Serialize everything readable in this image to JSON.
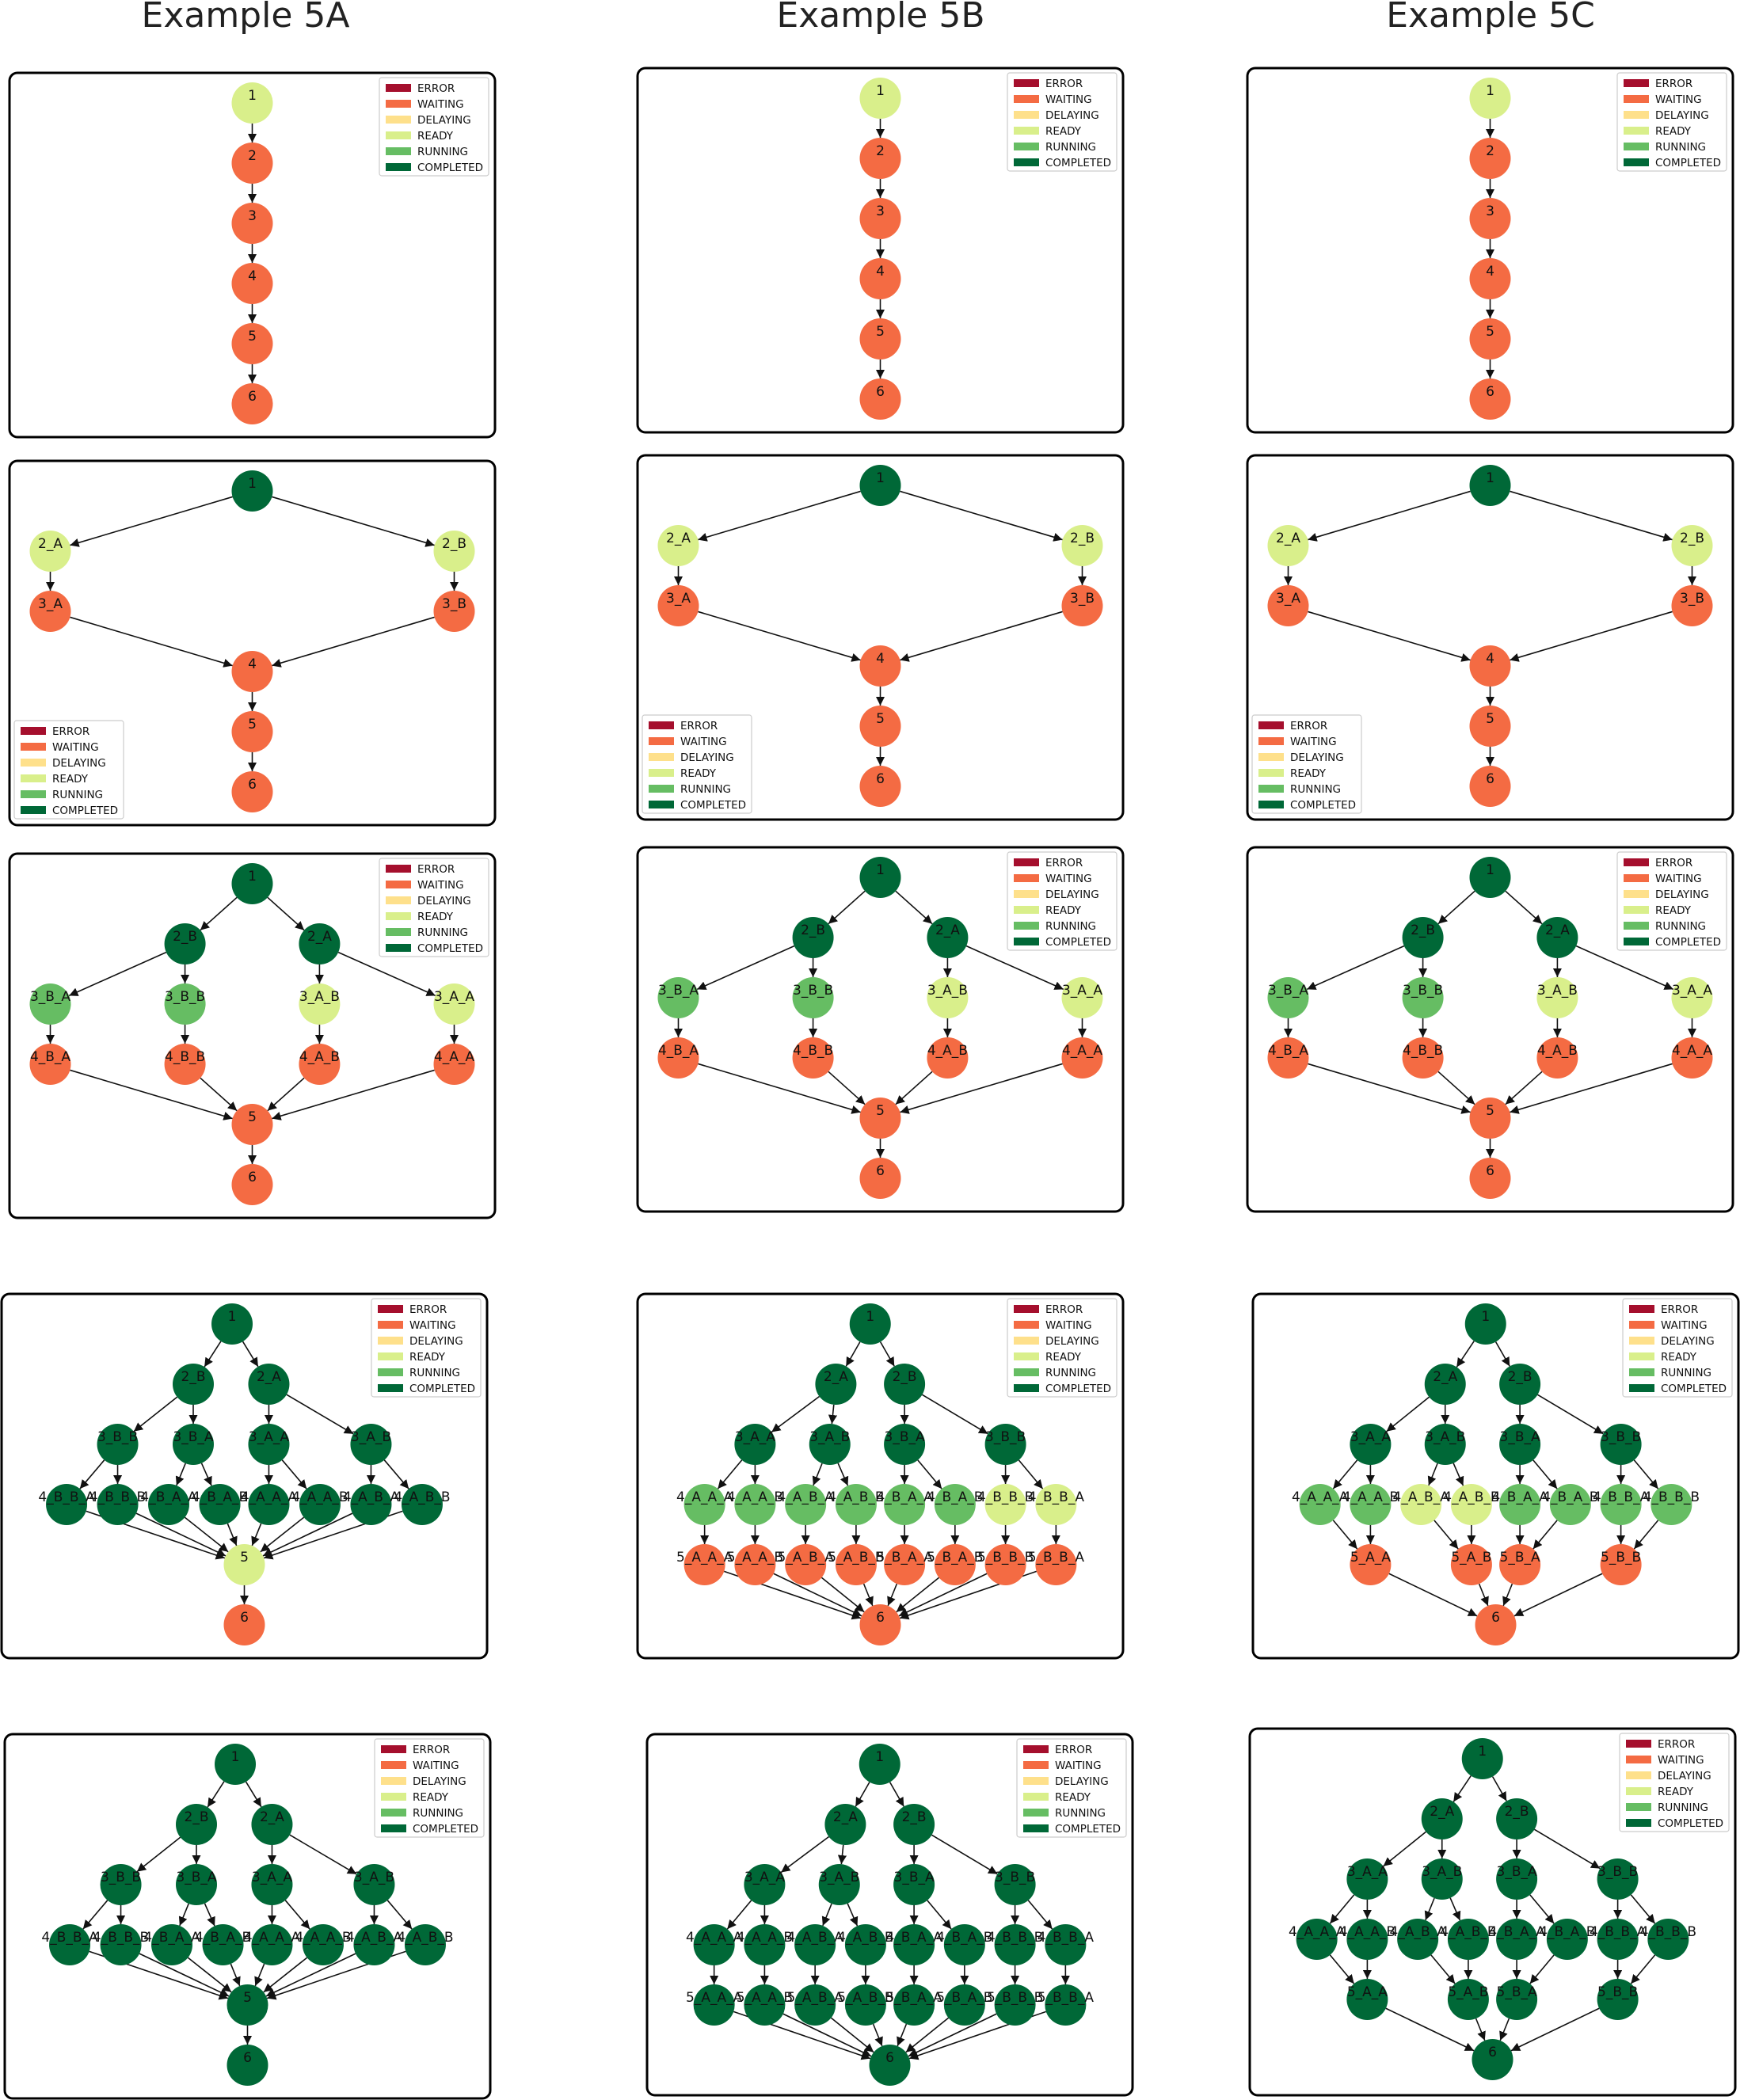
{
  "columns": [
    "Example 5A",
    "Example 5B",
    "Example 5C"
  ],
  "legend": [
    {
      "label": "ERROR",
      "color": "#a50f2d"
    },
    {
      "label": "WAITING",
      "color": "#f46b43"
    },
    {
      "label": "DELAYING",
      "color": "#fee08b"
    },
    {
      "label": "READY",
      "color": "#d9ef8b"
    },
    {
      "label": "RUNNING",
      "color": "#66bd63"
    },
    {
      "label": "COMPLETED",
      "color": "#006837"
    }
  ],
  "status_colors": {
    "W": "#f46b43",
    "R": "#d9ef8b",
    "U": "#66bd63",
    "C": "#006837"
  },
  "panels": [
    {
      "graph": "chain",
      "legend_pos": "top-right",
      "states": {
        "1": "R"
      }
    },
    {
      "graph": "chain",
      "legend_pos": "top-right",
      "states": {
        "1": "R"
      }
    },
    {
      "graph": "chain",
      "legend_pos": "top-right",
      "states": {
        "1": "R"
      }
    },
    {
      "graph": "g2",
      "legend_pos": "bottom-left",
      "states": {
        "1": "C",
        "2_A": "R",
        "2_B": "R"
      }
    },
    {
      "graph": "g2",
      "legend_pos": "bottom-left",
      "states": {
        "1": "C",
        "2_A": "R",
        "2_B": "R"
      }
    },
    {
      "graph": "g2",
      "legend_pos": "bottom-left",
      "states": {
        "1": "C",
        "2_A": "R",
        "2_B": "R"
      }
    },
    {
      "graph": "g3",
      "legend_pos": "top-right",
      "states": {
        "1": "C",
        "2_B": "C",
        "2_A": "C",
        "3_B_A": "U",
        "3_B_B": "U",
        "3_A_B": "R",
        "3_A_A": "R"
      }
    },
    {
      "graph": "g3",
      "legend_pos": "top-right",
      "states": {
        "1": "C",
        "2_B": "C",
        "2_A": "C",
        "3_B_A": "U",
        "3_B_B": "U",
        "3_A_B": "R",
        "3_A_A": "R"
      }
    },
    {
      "graph": "g3",
      "legend_pos": "top-right",
      "states": {
        "1": "C",
        "2_B": "C",
        "2_A": "C",
        "3_B_A": "U",
        "3_B_B": "U",
        "3_A_B": "R",
        "3_A_A": "R"
      }
    },
    {
      "graph": "a",
      "legend_pos": "top-right",
      "states": {
        "1": "C",
        "2_B": "C",
        "2_A": "C",
        "3_B_B": "C",
        "3_B_A": "C",
        "3_A_A": "C",
        "3_A_B": "C",
        "4_B_B_A": "C",
        "4_B_B_B": "C",
        "4_B_A_A": "C",
        "4_B_A_B": "C",
        "4_A_A_A": "C",
        "4_A_A_B": "C",
        "4_A_B_A": "C",
        "4_A_B_B": "C",
        "5": "R"
      }
    },
    {
      "graph": "b",
      "legend_pos": "top-right",
      "states": {
        "1": "C",
        "2_A": "C",
        "2_B": "C",
        "3_A_A": "C",
        "3_A_B": "C",
        "3_B_A": "C",
        "3_B_B": "C",
        "4_A_A_A": "U",
        "4_A_A_B": "U",
        "4_A_B_A": "U",
        "4_A_B_B": "U",
        "4_B_A_A": "U",
        "4_B_A_B": "U",
        "4_B_B_B": "R",
        "4_B_B_A": "R"
      }
    },
    {
      "graph": "c",
      "legend_pos": "top-right",
      "states": {
        "1": "C",
        "2_A": "C",
        "2_B": "C",
        "3_A_A": "C",
        "3_A_B": "C",
        "3_B_A": "C",
        "3_B_B": "C",
        "4_A_A_A": "U",
        "4_A_A_B": "U",
        "4_A_B_A": "R",
        "4_A_B_B": "R",
        "4_B_A_A": "U",
        "4_B_A_B": "U",
        "4_B_B_A": "U",
        "4_B_B_B": "U"
      }
    },
    {
      "graph": "a",
      "legend_pos": "top-right",
      "states": {
        "*": "C"
      }
    },
    {
      "graph": "b",
      "legend_pos": "top-right",
      "states": {
        "*": "C"
      }
    },
    {
      "graph": "c",
      "legend_pos": "top-right",
      "states": {
        "*": "C"
      }
    }
  ],
  "graphs": {
    "chain": {
      "nodes": [
        [
          "1",
          0,
          0
        ],
        [
          "2",
          0,
          1
        ],
        [
          "3",
          0,
          2
        ],
        [
          "4",
          0,
          3
        ],
        [
          "5",
          0,
          4
        ],
        [
          "6",
          0,
          5
        ]
      ],
      "edges": [
        [
          "1",
          "2"
        ],
        [
          "2",
          "3"
        ],
        [
          "3",
          "4"
        ],
        [
          "4",
          "5"
        ],
        [
          "5",
          "6"
        ]
      ]
    },
    "g2": {
      "nodes": [
        [
          "1",
          0,
          0
        ],
        [
          "2_A",
          -1,
          1
        ],
        [
          "2_B",
          1,
          1
        ],
        [
          "3_A",
          -1,
          2
        ],
        [
          "3_B",
          1,
          2
        ],
        [
          "4",
          0,
          3
        ],
        [
          "5",
          0,
          4
        ],
        [
          "6",
          0,
          5
        ]
      ],
      "edges": [
        [
          "1",
          "2_A"
        ],
        [
          "1",
          "2_B"
        ],
        [
          "2_A",
          "3_A"
        ],
        [
          "2_B",
          "3_B"
        ],
        [
          "3_A",
          "4"
        ],
        [
          "3_B",
          "4"
        ],
        [
          "4",
          "5"
        ],
        [
          "5",
          "6"
        ]
      ]
    },
    "g3": {
      "nodes": [
        [
          "1",
          0,
          0
        ],
        [
          "2_B",
          -0.333,
          1
        ],
        [
          "2_A",
          0.333,
          1
        ],
        [
          "3_B_A",
          -1,
          2
        ],
        [
          "3_B_B",
          -0.333,
          2
        ],
        [
          "3_A_B",
          0.333,
          2
        ],
        [
          "3_A_A",
          1,
          2
        ],
        [
          "4_B_A",
          -1,
          3
        ],
        [
          "4_B_B",
          -0.333,
          3
        ],
        [
          "4_A_B",
          0.333,
          3
        ],
        [
          "4_A_A",
          1,
          3
        ],
        [
          "5",
          0,
          4
        ],
        [
          "6",
          0,
          5
        ]
      ],
      "edges": [
        [
          "1",
          "2_B"
        ],
        [
          "1",
          "2_A"
        ],
        [
          "2_B",
          "3_B_A"
        ],
        [
          "2_B",
          "3_B_B"
        ],
        [
          "2_A",
          "3_A_B"
        ],
        [
          "2_A",
          "3_A_A"
        ],
        [
          "3_B_A",
          "4_B_A"
        ],
        [
          "3_B_B",
          "4_B_B"
        ],
        [
          "3_A_B",
          "4_A_B"
        ],
        [
          "3_A_A",
          "4_A_A"
        ],
        [
          "4_B_A",
          "5"
        ],
        [
          "4_B_B",
          "5"
        ],
        [
          "4_A_B",
          "5"
        ],
        [
          "4_A_A",
          "5"
        ],
        [
          "5",
          "6"
        ]
      ]
    },
    "a": {
      "nodes": [
        [
          "1",
          -0.06,
          0
        ],
        [
          "2_B",
          -0.25,
          1
        ],
        [
          "2_A",
          0.12,
          1
        ],
        [
          "3_B_B",
          -0.62,
          2
        ],
        [
          "3_B_A",
          -0.25,
          2
        ],
        [
          "3_A_A",
          0.12,
          2
        ],
        [
          "3_A_B",
          0.62,
          2
        ],
        [
          "4_B_B_A",
          -0.87,
          3
        ],
        [
          "4_B_B_B",
          -0.62,
          3
        ],
        [
          "4_B_A_A",
          -0.37,
          3
        ],
        [
          "4_B_A_B",
          -0.12,
          3
        ],
        [
          "4_A_A_A",
          0.12,
          3
        ],
        [
          "4_A_A_B",
          0.37,
          3
        ],
        [
          "4_A_B_A",
          0.62,
          3
        ],
        [
          "4_A_B_B",
          0.87,
          3
        ],
        [
          "5",
          0,
          4
        ],
        [
          "6",
          0,
          5
        ]
      ],
      "edges": [
        [
          "1",
          "2_B"
        ],
        [
          "1",
          "2_A"
        ],
        [
          "2_B",
          "3_B_B"
        ],
        [
          "2_B",
          "3_B_A"
        ],
        [
          "2_A",
          "3_A_A"
        ],
        [
          "2_A",
          "3_A_B"
        ],
        [
          "3_B_B",
          "4_B_B_A"
        ],
        [
          "3_B_B",
          "4_B_B_B"
        ],
        [
          "3_B_A",
          "4_B_A_A"
        ],
        [
          "3_B_A",
          "4_B_A_B"
        ],
        [
          "3_A_A",
          "4_A_A_A"
        ],
        [
          "3_A_A",
          "4_A_A_B"
        ],
        [
          "3_A_B",
          "4_A_B_A"
        ],
        [
          "3_A_B",
          "4_A_B_B"
        ],
        [
          "4_B_B_A",
          "5"
        ],
        [
          "4_B_B_B",
          "5"
        ],
        [
          "4_B_A_A",
          "5"
        ],
        [
          "4_B_A_B",
          "5"
        ],
        [
          "4_A_A_A",
          "5"
        ],
        [
          "4_A_A_B",
          "5"
        ],
        [
          "4_A_B_A",
          "5"
        ],
        [
          "4_A_B_B",
          "5"
        ],
        [
          "5",
          "6"
        ]
      ]
    },
    "b": {
      "nodes": [
        [
          "1",
          -0.05,
          0
        ],
        [
          "2_A",
          -0.22,
          1
        ],
        [
          "2_B",
          0.12,
          1
        ],
        [
          "3_A_A",
          -0.62,
          2
        ],
        [
          "3_A_B",
          -0.25,
          2
        ],
        [
          "3_B_A",
          0.12,
          2
        ],
        [
          "3_B_B",
          0.62,
          2
        ],
        [
          "4_A_A_A",
          -0.87,
          3
        ],
        [
          "4_A_A_B",
          -0.62,
          3
        ],
        [
          "4_A_B_A",
          -0.37,
          3
        ],
        [
          "4_A_B_B",
          -0.12,
          3
        ],
        [
          "4_B_A_A",
          0.12,
          3
        ],
        [
          "4_B_A_B",
          0.37,
          3
        ],
        [
          "4_B_B_B",
          0.62,
          3
        ],
        [
          "4_B_B_A",
          0.87,
          3
        ],
        [
          "5_A_A_A",
          -0.87,
          4
        ],
        [
          "5_A_A_B",
          -0.62,
          4
        ],
        [
          "5_A_B_A",
          -0.37,
          4
        ],
        [
          "5_A_B_B",
          -0.12,
          4
        ],
        [
          "5_B_A_A",
          0.12,
          4
        ],
        [
          "5_B_A_B",
          0.37,
          4
        ],
        [
          "5_B_B_B",
          0.62,
          4
        ],
        [
          "5_B_B_A",
          0.87,
          4
        ],
        [
          "6",
          0,
          5
        ]
      ],
      "edges": [
        [
          "1",
          "2_A"
        ],
        [
          "1",
          "2_B"
        ],
        [
          "2_A",
          "3_A_A"
        ],
        [
          "2_A",
          "3_A_B"
        ],
        [
          "2_B",
          "3_B_A"
        ],
        [
          "2_B",
          "3_B_B"
        ],
        [
          "3_A_A",
          "4_A_A_A"
        ],
        [
          "3_A_A",
          "4_A_A_B"
        ],
        [
          "3_A_B",
          "4_A_B_A"
        ],
        [
          "3_A_B",
          "4_A_B_B"
        ],
        [
          "3_B_A",
          "4_B_A_A"
        ],
        [
          "3_B_A",
          "4_B_A_B"
        ],
        [
          "3_B_B",
          "4_B_B_B"
        ],
        [
          "3_B_B",
          "4_B_B_A"
        ],
        [
          "4_A_A_A",
          "5_A_A_A"
        ],
        [
          "4_A_A_B",
          "5_A_A_B"
        ],
        [
          "4_A_B_A",
          "5_A_B_A"
        ],
        [
          "4_A_B_B",
          "5_A_B_B"
        ],
        [
          "4_B_A_A",
          "5_B_A_A"
        ],
        [
          "4_B_A_B",
          "5_B_A_B"
        ],
        [
          "4_B_B_B",
          "5_B_B_B"
        ],
        [
          "4_B_B_A",
          "5_B_B_A"
        ],
        [
          "5_A_A_A",
          "6"
        ],
        [
          "5_A_A_B",
          "6"
        ],
        [
          "5_A_B_A",
          "6"
        ],
        [
          "5_A_B_B",
          "6"
        ],
        [
          "5_B_A_A",
          "6"
        ],
        [
          "5_B_A_B",
          "6"
        ],
        [
          "5_B_B_B",
          "6"
        ],
        [
          "5_B_B_A",
          "6"
        ]
      ]
    },
    "c": {
      "nodes": [
        [
          "1",
          -0.05,
          0
        ],
        [
          "2_A",
          -0.25,
          1
        ],
        [
          "2_B",
          0.12,
          1
        ],
        [
          "3_A_A",
          -0.62,
          2
        ],
        [
          "3_A_B",
          -0.25,
          2
        ],
        [
          "3_B_A",
          0.12,
          2
        ],
        [
          "3_B_B",
          0.62,
          2
        ],
        [
          "4_A_A_A",
          -0.87,
          3
        ],
        [
          "4_A_A_B",
          -0.62,
          3
        ],
        [
          "4_A_B_A",
          -0.37,
          3
        ],
        [
          "4_A_B_B",
          -0.12,
          3
        ],
        [
          "4_B_A_A",
          0.12,
          3
        ],
        [
          "4_B_A_B",
          0.37,
          3
        ],
        [
          "4_B_B_A",
          0.62,
          3
        ],
        [
          "4_B_B_B",
          0.87,
          3
        ],
        [
          "5_A_A",
          -0.62,
          4
        ],
        [
          "5_A_B",
          -0.12,
          4
        ],
        [
          "5_B_A",
          0.12,
          4
        ],
        [
          "5_B_B",
          0.62,
          4
        ],
        [
          "6",
          0,
          5
        ]
      ],
      "edges": [
        [
          "1",
          "2_A"
        ],
        [
          "1",
          "2_B"
        ],
        [
          "2_A",
          "3_A_A"
        ],
        [
          "2_A",
          "3_A_B"
        ],
        [
          "2_B",
          "3_B_A"
        ],
        [
          "2_B",
          "3_B_B"
        ],
        [
          "3_A_A",
          "4_A_A_A"
        ],
        [
          "3_A_A",
          "4_A_A_B"
        ],
        [
          "3_A_B",
          "4_A_B_A"
        ],
        [
          "3_A_B",
          "4_A_B_B"
        ],
        [
          "3_B_A",
          "4_B_A_A"
        ],
        [
          "3_B_A",
          "4_B_A_B"
        ],
        [
          "3_B_B",
          "4_B_B_A"
        ],
        [
          "3_B_B",
          "4_B_B_B"
        ],
        [
          "4_A_A_A",
          "5_A_A"
        ],
        [
          "4_A_A_B",
          "5_A_A"
        ],
        [
          "4_A_B_A",
          "5_A_B"
        ],
        [
          "4_A_B_B",
          "5_A_B"
        ],
        [
          "4_B_A_A",
          "5_B_A"
        ],
        [
          "4_B_A_B",
          "5_B_A"
        ],
        [
          "4_B_B_A",
          "5_B_B"
        ],
        [
          "4_B_B_B",
          "5_B_B"
        ],
        [
          "5_A_A",
          "6"
        ],
        [
          "5_A_B",
          "6"
        ],
        [
          "5_B_A",
          "6"
        ],
        [
          "5_B_B",
          "6"
        ]
      ]
    }
  }
}
